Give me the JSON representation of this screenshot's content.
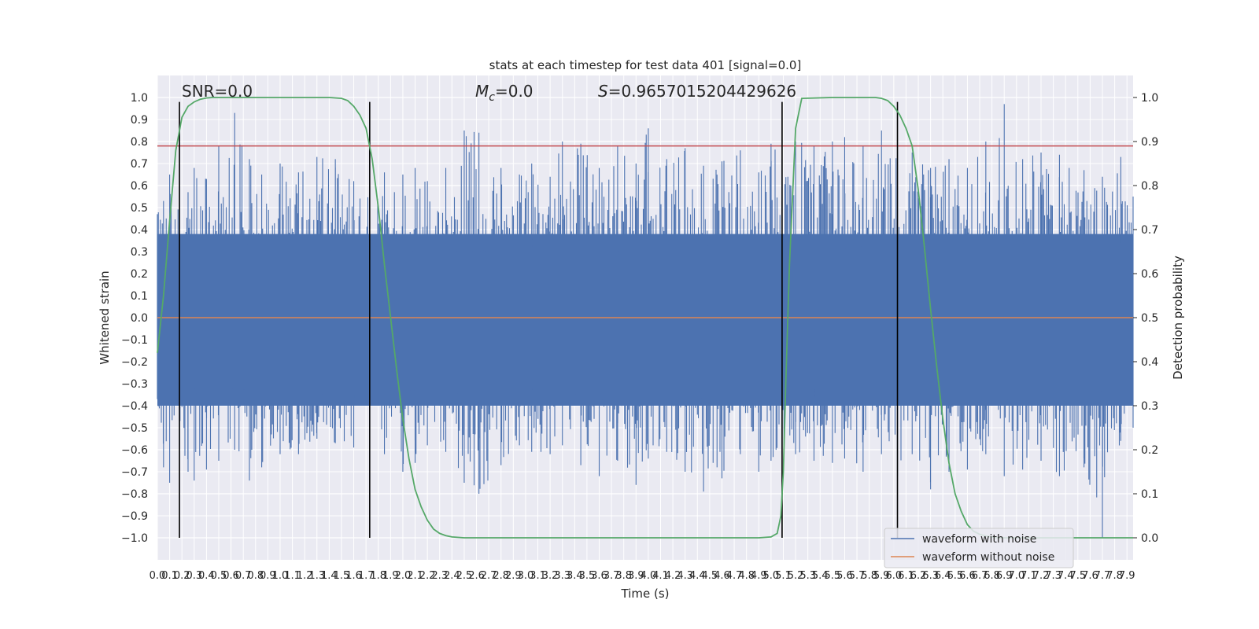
{
  "chart_data": {
    "type": "line",
    "title": "stats at each timestep for test data 401 [signal=0.0]",
    "xlabel": "Time (s)",
    "ylabel": "Whitened strain",
    "ylabel_right": "Detection probability",
    "xlim": [
      0,
      7.95
    ],
    "ylim": [
      -1.1,
      1.1
    ],
    "ylim_right": [
      -0.05,
      1.05
    ],
    "x_ticks": [
      0.0,
      0.1,
      0.2,
      0.3,
      0.4,
      0.5,
      0.6,
      0.7,
      0.8,
      0.9,
      1.0,
      1.1,
      1.2,
      1.3,
      1.4,
      1.5,
      1.6,
      1.7,
      1.8,
      1.9,
      2.0,
      2.1,
      2.2,
      2.3,
      2.4,
      2.5,
      2.6,
      2.7,
      2.8,
      2.9,
      3.0,
      3.1,
      3.2,
      3.3,
      3.4,
      3.5,
      3.6,
      3.7,
      3.8,
      3.9,
      4.0,
      4.1,
      4.2,
      4.3,
      4.4,
      4.5,
      4.6,
      4.7,
      4.8,
      4.9,
      5.0,
      5.1,
      5.2,
      5.3,
      5.4,
      5.5,
      5.6,
      5.7,
      5.8,
      5.9,
      6.0,
      6.1,
      6.2,
      6.3,
      6.4,
      6.5,
      6.6,
      6.7,
      6.8,
      6.9,
      7.0,
      7.1,
      7.2,
      7.3,
      7.4,
      7.5,
      7.6,
      7.7,
      7.8,
      7.9
    ],
    "y_ticks": [
      "1.0",
      "0.9",
      "0.8",
      "0.7",
      "0.6",
      "0.5",
      "0.4",
      "0.3",
      "0.2",
      "0.1",
      "0.0",
      "−0.1",
      "−0.2",
      "−0.3",
      "−0.4",
      "−0.5",
      "−0.6",
      "−0.7",
      "−0.8",
      "−0.9",
      "−1.0"
    ],
    "y_ticks_right": [
      "1.0",
      "0.9",
      "0.8",
      "0.7",
      "0.6",
      "0.5",
      "0.4",
      "0.3",
      "0.2",
      "0.1",
      "0.0"
    ],
    "grid": true,
    "legend_position": "lower-right",
    "annotations": {
      "snr": "SNR=0.0",
      "mc_symbol": "M",
      "mc_sub": "c",
      "mc_value": "=0.0",
      "s_symbol": "S",
      "s_value": "=0.9657015204429626"
    },
    "threshold_line": {
      "y": 0.78,
      "color": "#c44e52"
    },
    "vertical_lines_x": [
      0.18,
      1.73,
      5.09,
      6.03
    ],
    "vertical_lines_yrange": [
      -1.0,
      0.98
    ],
    "series": [
      {
        "name": "waveform with noise",
        "color": "#4c72b0",
        "envelope_points": [
          [
            0.0,
            0.47,
            -0.37
          ],
          [
            0.05,
            0.53,
            -0.68
          ],
          [
            0.1,
            0.65,
            -0.75
          ],
          [
            0.18,
            0.62,
            -0.58
          ],
          [
            0.25,
            0.57,
            -0.7
          ],
          [
            0.3,
            0.68,
            -0.74
          ],
          [
            0.4,
            0.63,
            -0.69
          ],
          [
            0.5,
            0.78,
            -0.65
          ],
          [
            0.63,
            0.93,
            -0.6
          ],
          [
            0.75,
            0.72,
            -0.74
          ],
          [
            0.85,
            0.65,
            -0.68
          ],
          [
            1.0,
            0.7,
            -0.62
          ],
          [
            1.15,
            0.66,
            -0.62
          ],
          [
            1.3,
            0.73,
            -0.55
          ],
          [
            1.45,
            0.72,
            -0.57
          ],
          [
            1.6,
            0.62,
            -0.59
          ],
          [
            1.73,
            0.57,
            -0.4
          ],
          [
            1.85,
            0.66,
            -0.62
          ],
          [
            2.0,
            0.65,
            -0.7
          ],
          [
            2.1,
            0.68,
            -0.66
          ],
          [
            2.2,
            0.62,
            -0.58
          ],
          [
            2.35,
            0.68,
            -0.61
          ],
          [
            2.5,
            0.85,
            -0.75
          ],
          [
            2.62,
            0.84,
            -0.8
          ],
          [
            2.8,
            0.68,
            -0.67
          ],
          [
            2.95,
            0.65,
            -0.58
          ],
          [
            3.05,
            0.7,
            -0.61
          ],
          [
            3.2,
            0.64,
            -0.62
          ],
          [
            3.3,
            0.8,
            -0.58
          ],
          [
            3.45,
            0.79,
            -0.67
          ],
          [
            3.6,
            0.68,
            -0.72
          ],
          [
            3.75,
            0.78,
            -0.65
          ],
          [
            3.9,
            0.7,
            -0.76
          ],
          [
            4.0,
            0.86,
            -0.64
          ],
          [
            4.15,
            0.72,
            -0.61
          ],
          [
            4.3,
            0.77,
            -0.7
          ],
          [
            4.45,
            0.69,
            -0.79
          ],
          [
            4.6,
            0.71,
            -0.73
          ],
          [
            4.75,
            0.76,
            -0.62
          ],
          [
            4.9,
            0.66,
            -0.7
          ],
          [
            5.0,
            0.79,
            -0.65
          ],
          [
            5.09,
            0.72,
            -0.62
          ],
          [
            5.2,
            0.8,
            -0.62
          ],
          [
            5.35,
            0.78,
            -0.65
          ],
          [
            5.5,
            0.8,
            -0.66
          ],
          [
            5.6,
            0.82,
            -0.64
          ],
          [
            5.75,
            0.78,
            -0.7
          ],
          [
            5.9,
            0.85,
            -0.62
          ],
          [
            6.03,
            0.76,
            -0.72
          ],
          [
            6.15,
            0.75,
            -0.62
          ],
          [
            6.3,
            0.68,
            -0.78
          ],
          [
            6.45,
            0.72,
            -0.7
          ],
          [
            6.6,
            0.68,
            -0.69
          ],
          [
            6.75,
            0.8,
            -0.62
          ],
          [
            6.9,
            0.97,
            -0.72
          ],
          [
            7.05,
            0.72,
            -0.69
          ],
          [
            7.2,
            0.75,
            -0.65
          ],
          [
            7.35,
            0.74,
            -0.72
          ],
          [
            7.55,
            0.67,
            -0.68
          ],
          [
            7.7,
            0.64,
            -1.0
          ],
          [
            7.85,
            0.73,
            -0.56
          ],
          [
            7.95,
            0.55,
            -0.5
          ]
        ]
      },
      {
        "name": "waveform without noise",
        "color": "#dd8452",
        "value": 0.0
      },
      {
        "name": "Detection probability",
        "axis": "right",
        "color": "#55a868",
        "x": [
          0.0,
          0.05,
          0.1,
          0.15,
          0.2,
          0.25,
          0.3,
          0.35,
          0.4,
          0.45,
          0.5,
          1.4,
          1.5,
          1.55,
          1.6,
          1.65,
          1.7,
          1.75,
          1.8,
          1.85,
          1.9,
          1.95,
          2.0,
          2.05,
          2.1,
          2.15,
          2.2,
          2.25,
          2.3,
          2.35,
          2.4,
          2.5,
          2.6,
          4.9,
          5.0,
          5.05,
          5.08,
          5.1,
          5.12,
          5.15,
          5.2,
          5.25,
          5.5,
          5.85,
          5.9,
          5.95,
          6.0,
          6.05,
          6.1,
          6.15,
          6.2,
          6.25,
          6.3,
          6.35,
          6.4,
          6.45,
          6.5,
          6.55,
          6.6,
          6.65,
          6.7,
          6.75,
          6.8,
          6.85,
          6.9,
          7.2,
          7.95
        ],
        "y": [
          0.42,
          0.55,
          0.72,
          0.88,
          0.955,
          0.98,
          0.99,
          0.996,
          0.999,
          1.0,
          1.0,
          1.0,
          0.998,
          0.993,
          0.98,
          0.96,
          0.93,
          0.86,
          0.75,
          0.62,
          0.5,
          0.38,
          0.27,
          0.18,
          0.11,
          0.07,
          0.04,
          0.02,
          0.01,
          0.005,
          0.002,
          0.0,
          0.0,
          0.0,
          0.002,
          0.01,
          0.05,
          0.15,
          0.35,
          0.62,
          0.93,
          0.998,
          1.0,
          1.0,
          0.998,
          0.993,
          0.98,
          0.96,
          0.93,
          0.89,
          0.79,
          0.66,
          0.52,
          0.39,
          0.27,
          0.17,
          0.1,
          0.06,
          0.03,
          0.015,
          0.008,
          0.004,
          0.002,
          0.0,
          0.0,
          0.0,
          0.0
        ]
      }
    ]
  },
  "legend": {
    "item1": "waveform with noise",
    "item2": "waveform without noise"
  }
}
